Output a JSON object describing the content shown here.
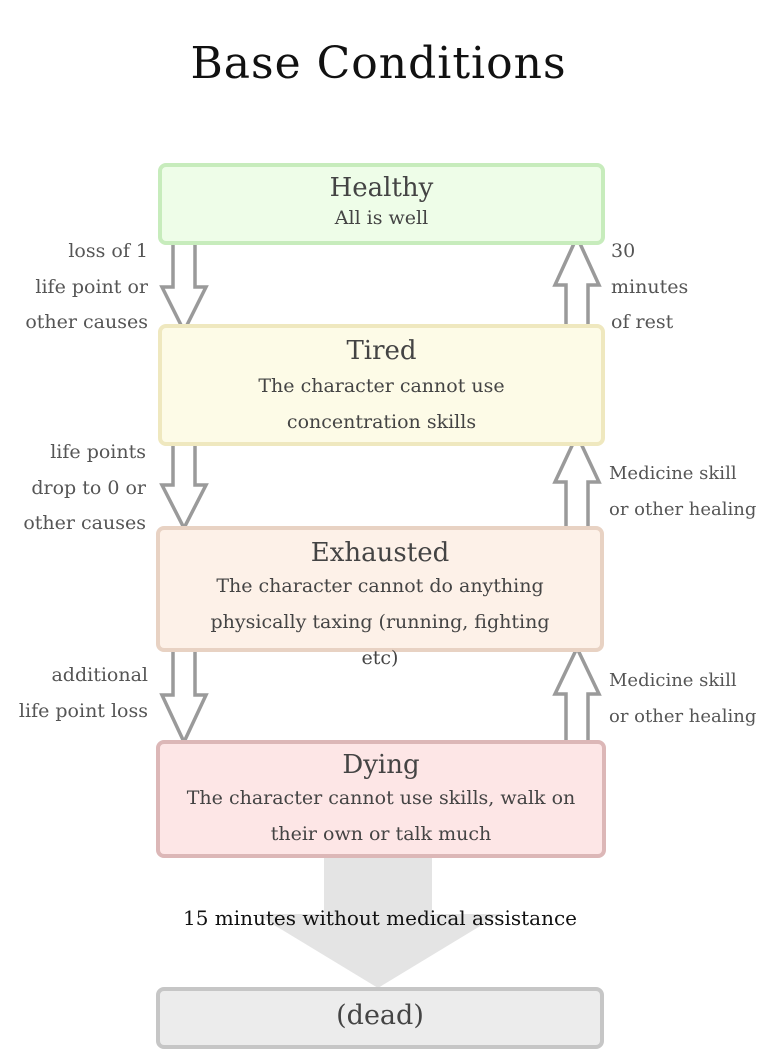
{
  "title": "Base Conditions",
  "states": [
    {
      "name": "Healthy",
      "description": "All is well"
    },
    {
      "name": "Tired",
      "description": "The character cannot use concentration skills"
    },
    {
      "name": "Exhausted",
      "description": "The character cannot do anything physically taxing (running, fighting etc)"
    },
    {
      "name": "Dying",
      "description": "The character cannot use skills, walk on their own or talk much"
    },
    {
      "name": "(dead)"
    }
  ],
  "transitions_down": [
    [
      "loss of 1",
      "life point or",
      "other causes"
    ],
    [
      "life points",
      "drop to 0 or",
      "other causes"
    ],
    [
      "additional",
      "life point loss"
    ]
  ],
  "transitions_up": [
    [
      "30",
      "minutes",
      "of rest"
    ],
    [
      "Medicine skill",
      "or other healing"
    ],
    [
      "Medicine skill",
      "or other healing"
    ]
  ],
  "death_transition": "15 minutes without medical assistance",
  "colors": {
    "healthy_fill": "#eefde8",
    "healthy_border": "#c7ecbc",
    "tired_fill": "#fdfbe7",
    "tired_border": "#efe8bf",
    "exhausted_fill": "#fdf1e8",
    "exhausted_border": "#e8d2c3",
    "dying_fill": "#fde6e6",
    "dying_border": "#dcb7b7",
    "dead_fill": "#ececec",
    "dead_border": "#c6c6c6",
    "arrow": "#9a9a9a",
    "big_arrow": "#e4e4e4"
  }
}
